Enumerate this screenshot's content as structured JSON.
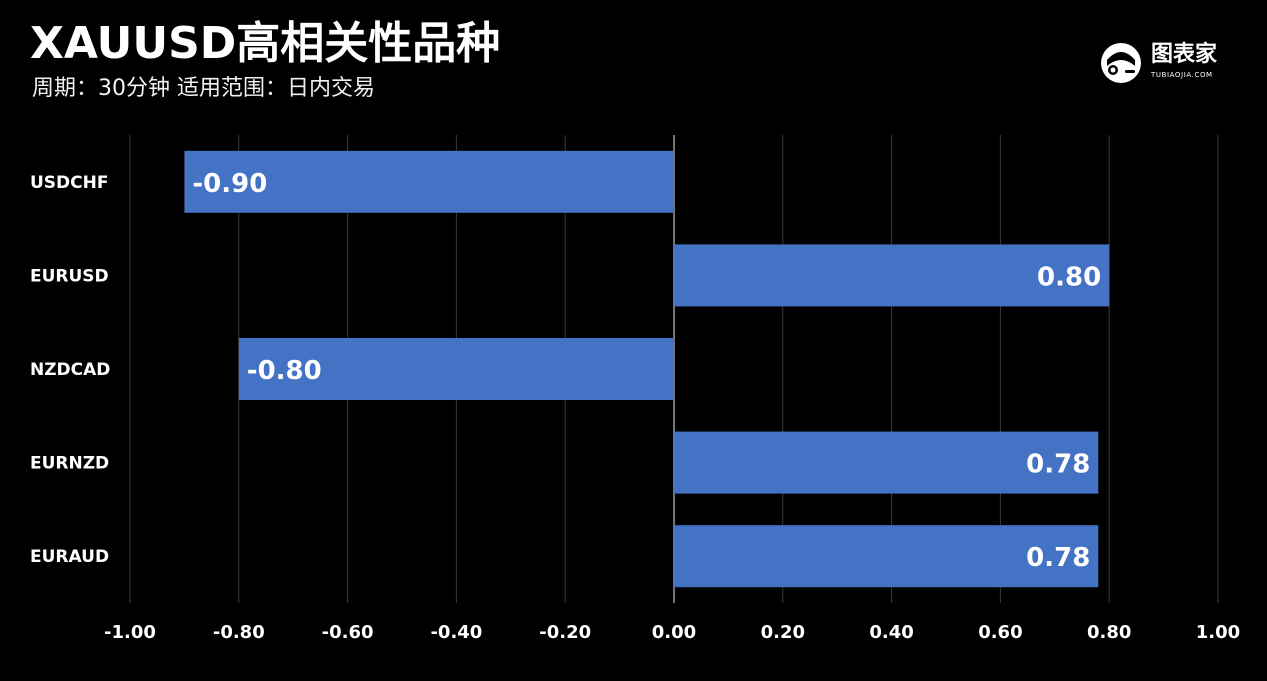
{
  "header": {
    "title": "XAUUSD高相关性品种",
    "subtitle": "周期：30分钟  适用范围：日内交易"
  },
  "logo": {
    "icon": "robot-head-icon",
    "name": "图表家",
    "domain": "TUBIAOJIA.COM"
  },
  "chart_data": {
    "type": "bar",
    "orientation": "horizontal",
    "categories": [
      "USDCHF",
      "EURUSD",
      "NZDCAD",
      "EURNZD",
      "EURAUD"
    ],
    "values": [
      -0.9,
      0.8,
      -0.8,
      0.78,
      0.78
    ],
    "value_labels": [
      "-0.90",
      "0.80",
      "-0.80",
      "0.78",
      "0.78"
    ],
    "xlim": [
      -1.0,
      1.0
    ],
    "xticks": [
      "-1.00",
      "-0.80",
      "-0.60",
      "-0.40",
      "-0.20",
      "0.00",
      "0.20",
      "0.40",
      "0.60",
      "0.80",
      "1.00"
    ],
    "grid": true,
    "bar_color": "#4472C4",
    "background": "#000000",
    "title": "",
    "xlabel": "",
    "ylabel": ""
  }
}
